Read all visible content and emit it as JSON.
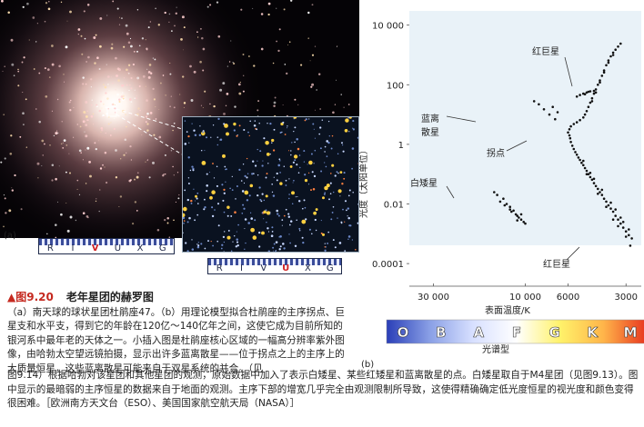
{
  "photo": {
    "panel_label": "(a)",
    "filter_bar_main": [
      "R",
      "I",
      "V",
      "U",
      "X",
      "G"
    ],
    "filter_bar_inset": [
      "R",
      "I",
      "V",
      "U",
      "X",
      "G"
    ],
    "filter_highlight_main": "V",
    "filter_highlight_inset": "U"
  },
  "caption": {
    "figure_number": "▲图9.20",
    "figure_title": "老年星团的赫罗图",
    "body": "（a）南天球的球状星团杜鹃座47。（b）用理论模型拟合杜鹃座的主序拐点、巨星支和水平支，得到它的年龄在120亿～140亿年之间，这使它成为目前所知的银河系中最年老的天体之一。小插入图是杜鹃座核心区域的一幅高分辨率紫外图像，由哈勃太空望远镜拍摄，显示出许多蓝离散星——位于拐点之上的主序上的大质量恒星，这些蓝离散星可能来自于双星系统的并合。（见",
    "body_continued": "图9.14）根据哈勃对该星团和其他星团的观测，原始数据中加入了表示白矮星、某些红矮星和蓝离散星的点。白矮星取自于M4星团（见图9.13）。图中显示的最暗弱的主序恒星的数据来自于地面的观测。主序下部的增宽几乎完全由观测限制所导致，这使得精确确定低光度恒星的视光度和颜色变得很困难。［欧洲南方天文台（ESO）、美国国家航空航天局（NASA）］"
  },
  "chart_data": {
    "type": "scatter",
    "panel_label": "(b)",
    "ylabel": "光度（太阳单位）",
    "xlabel": "表面温度/K",
    "y_scale": "log",
    "x_scale": "log-reversed",
    "ylim": [
      5e-05,
      30000
    ],
    "xlim": [
      40000,
      2500
    ],
    "y_ticks": [
      {
        "value": 10000,
        "label": "10 000"
      },
      {
        "value": 100,
        "label": "100"
      },
      {
        "value": 1,
        "label": "1"
      },
      {
        "value": 0.01,
        "label": "0.01"
      },
      {
        "value": 0.0001,
        "label": "0.0001"
      }
    ],
    "x_ticks": [
      {
        "value": 30000,
        "label": "30 000"
      },
      {
        "value": 10000,
        "label": "10 000"
      },
      {
        "value": 6000,
        "label": "6000"
      },
      {
        "value": 3000,
        "label": "3000"
      }
    ],
    "annotations": {
      "red_giant": "红巨星",
      "blue_stragglers": "蓝离散星",
      "turnoff": "拐点",
      "white_dwarf": "白矮星",
      "red_dwarf": "红巨星"
    },
    "spectral": {
      "label": "光谱型",
      "classes": [
        "O",
        "B",
        "A",
        "F",
        "G",
        "K",
        "M"
      ],
      "colors": [
        "#2a3fb8",
        "#8aa0e6",
        "#d8e0ff",
        "#ffffff",
        "#fff26a",
        "#ffb54a",
        "#e8361f"
      ]
    },
    "series": [
      {
        "group": "main-sequence",
        "points": [
          [
            6000,
            2.5
          ],
          [
            5900,
            2.0
          ],
          [
            5850,
            1.6
          ],
          [
            5800,
            1.2
          ],
          [
            5700,
            0.9
          ],
          [
            5600,
            0.7
          ],
          [
            5500,
            0.55
          ],
          [
            5400,
            0.45
          ],
          [
            5300,
            0.36
          ],
          [
            5200,
            0.3
          ],
          [
            5100,
            0.24
          ],
          [
            5000,
            0.2
          ],
          [
            4900,
            0.16
          ],
          [
            4800,
            0.13
          ],
          [
            4700,
            0.1
          ],
          [
            4600,
            0.08
          ],
          [
            4500,
            0.065
          ],
          [
            4400,
            0.05
          ],
          [
            4300,
            0.04
          ],
          [
            4200,
            0.032
          ],
          [
            4100,
            0.025
          ],
          [
            4000,
            0.02
          ],
          [
            3900,
            0.015
          ],
          [
            3800,
            0.012
          ],
          [
            3700,
            0.009
          ],
          [
            3600,
            0.007
          ],
          [
            3500,
            0.0055
          ],
          [
            3400,
            0.004
          ],
          [
            3300,
            0.003
          ],
          [
            3200,
            0.0022
          ],
          [
            3100,
            0.0016
          ],
          [
            3000,
            0.0012
          ],
          [
            2900,
            0.0009
          ],
          [
            2800,
            0.0007
          ],
          [
            5000,
            0.28
          ],
          [
            4800,
            0.1
          ],
          [
            4600,
            0.11
          ],
          [
            4400,
            0.07
          ],
          [
            4200,
            0.022
          ],
          [
            4000,
            0.03
          ],
          [
            3800,
            0.008
          ],
          [
            3600,
            0.011
          ],
          [
            3400,
            0.0065
          ],
          [
            3300,
            0.0018
          ],
          [
            3100,
            0.0025
          ],
          [
            3000,
            0.0008
          ],
          [
            2900,
            0.0014
          ],
          [
            2850,
            0.0004
          ],
          [
            3200,
            0.0035
          ],
          [
            3500,
            0.003
          ]
        ]
      },
      {
        "group": "subgiant-and-giant-branch",
        "points": [
          [
            5900,
            3.2
          ],
          [
            5800,
            4.0
          ],
          [
            5600,
            4.8
          ],
          [
            5400,
            5.5
          ],
          [
            5200,
            6.5
          ],
          [
            5000,
            8
          ],
          [
            4900,
            10
          ],
          [
            4800,
            13
          ],
          [
            4700,
            18
          ],
          [
            4600,
            25
          ],
          [
            4500,
            35
          ],
          [
            4400,
            50
          ],
          [
            4300,
            70
          ],
          [
            4200,
            100
          ],
          [
            4100,
            140
          ],
          [
            4000,
            200
          ],
          [
            3900,
            300
          ],
          [
            3800,
            450
          ],
          [
            3700,
            650
          ],
          [
            3600,
            900
          ],
          [
            3500,
            1200
          ],
          [
            3400,
            1500
          ],
          [
            3300,
            1900
          ],
          [
            3200,
            2400
          ],
          [
            4500,
            28
          ],
          [
            4300,
            55
          ],
          [
            4100,
            120
          ],
          [
            3900,
            260
          ],
          [
            3700,
            550
          ],
          [
            3500,
            1000
          ]
        ]
      },
      {
        "group": "horizontal-branch",
        "points": [
          [
            5200,
            45
          ],
          [
            5000,
            50
          ],
          [
            4800,
            55
          ],
          [
            4600,
            60
          ],
          [
            4400,
            62
          ],
          [
            5400,
            40
          ],
          [
            4900,
            48
          ],
          [
            4700,
            58
          ]
        ]
      },
      {
        "group": "blue-stragglers",
        "points": [
          [
            8500,
            22
          ],
          [
            8000,
            15
          ],
          [
            7500,
            10
          ],
          [
            7000,
            7
          ],
          [
            6800,
            12
          ],
          [
            7200,
            18
          ],
          [
            9000,
            28
          ]
        ]
      },
      {
        "group": "white-dwarfs",
        "points": [
          [
            14000,
            0.02
          ],
          [
            13000,
            0.015
          ],
          [
            12500,
            0.01
          ],
          [
            12000,
            0.008
          ],
          [
            11500,
            0.006
          ],
          [
            11000,
            0.004
          ],
          [
            10500,
            0.003
          ],
          [
            10000,
            0.0022
          ],
          [
            13500,
            0.012
          ],
          [
            12800,
            0.009
          ],
          [
            11800,
            0.0055
          ],
          [
            11200,
            0.0045
          ],
          [
            10800,
            0.0035
          ],
          [
            10200,
            0.0025
          ],
          [
            14500,
            0.025
          ],
          [
            12000,
            0.0065
          ],
          [
            11000,
            0.0028
          ],
          [
            10500,
            0.0045
          ]
        ]
      }
    ]
  }
}
